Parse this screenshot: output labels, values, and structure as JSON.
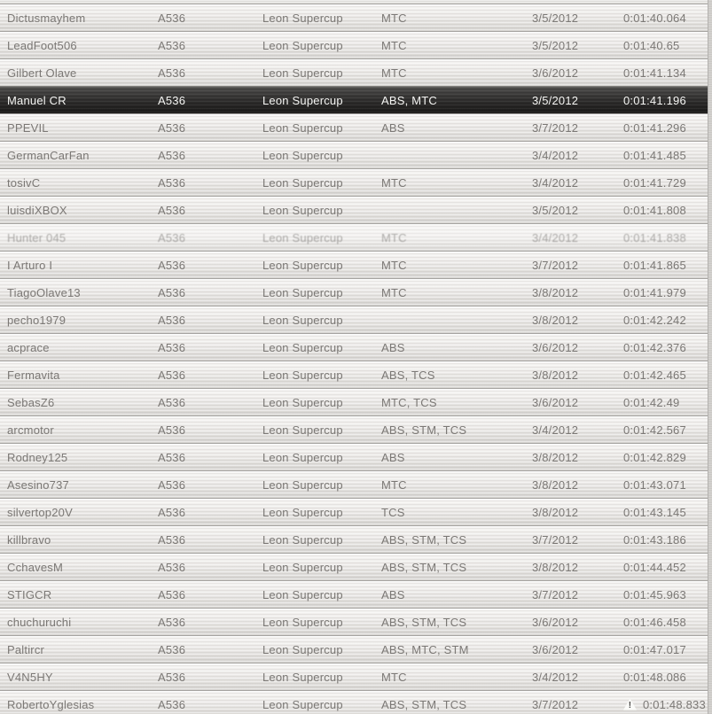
{
  "icons": {
    "warning_glyph": "!"
  },
  "colors": {
    "row_text": "#7b7875",
    "selected_row_top": "#5a5957",
    "selected_row_bottom": "#1b1a19",
    "selected_text": "#f5f5f3",
    "separator": "#a6a4a1"
  },
  "table": {
    "columns": [
      "player",
      "car_class",
      "series",
      "aids",
      "date",
      "time"
    ],
    "rows": [
      {
        "player": "Dictusmayhem",
        "car_class": "A536",
        "series": "Leon Supercup",
        "aids": "MTC",
        "date": "3/5/2012",
        "time": "0:01:40.064"
      },
      {
        "player": "LeadFoot506",
        "car_class": "A536",
        "series": "Leon Supercup",
        "aids": "MTC",
        "date": "3/5/2012",
        "time": "0:01:40.65"
      },
      {
        "player": "Gilbert Olave",
        "car_class": "A536",
        "series": "Leon Supercup",
        "aids": "MTC",
        "date": "3/6/2012",
        "time": "0:01:41.134"
      },
      {
        "player": "Manuel CR",
        "car_class": "A536",
        "series": "Leon Supercup",
        "aids": "ABS, MTC",
        "date": "3/5/2012",
        "time": "0:01:41.196",
        "selected": true
      },
      {
        "player": "PPEVIL",
        "car_class": "A536",
        "series": "Leon Supercup",
        "aids": "ABS",
        "date": "3/7/2012",
        "time": "0:01:41.296"
      },
      {
        "player": "GermanCarFan",
        "car_class": "A536",
        "series": "Leon Supercup",
        "aids": "",
        "date": "3/4/2012",
        "time": "0:01:41.485"
      },
      {
        "player": "tosivC",
        "car_class": "A536",
        "series": "Leon Supercup",
        "aids": "MTC",
        "date": "3/4/2012",
        "time": "0:01:41.729"
      },
      {
        "player": "luisdiXBOX",
        "car_class": "A536",
        "series": "Leon Supercup",
        "aids": "",
        "date": "3/5/2012",
        "time": "0:01:41.808"
      },
      {
        "player": "Hunter 045",
        "car_class": "A536",
        "series": "Leon Supercup",
        "aids": "MTC",
        "date": "3/4/2012",
        "time": "0:01:41.838",
        "glow": true
      },
      {
        "player": "I Arturo I",
        "car_class": "A536",
        "series": "Leon Supercup",
        "aids": "MTC",
        "date": "3/7/2012",
        "time": "0:01:41.865"
      },
      {
        "player": "TiagoOlave13",
        "car_class": "A536",
        "series": "Leon Supercup",
        "aids": "MTC",
        "date": "3/8/2012",
        "time": "0:01:41.979"
      },
      {
        "player": "pecho1979",
        "car_class": "A536",
        "series": "Leon Supercup",
        "aids": "",
        "date": "3/8/2012",
        "time": "0:01:42.242"
      },
      {
        "player": "acprace",
        "car_class": "A536",
        "series": "Leon Supercup",
        "aids": "ABS",
        "date": "3/6/2012",
        "time": "0:01:42.376"
      },
      {
        "player": "Fermavita",
        "car_class": "A536",
        "series": "Leon Supercup",
        "aids": "ABS, TCS",
        "date": "3/8/2012",
        "time": "0:01:42.465"
      },
      {
        "player": "SebasZ6",
        "car_class": "A536",
        "series": "Leon Supercup",
        "aids": "MTC, TCS",
        "date": "3/6/2012",
        "time": "0:01:42.49"
      },
      {
        "player": "arcmotor",
        "car_class": "A536",
        "series": "Leon Supercup",
        "aids": "ABS, STM, TCS",
        "date": "3/4/2012",
        "time": "0:01:42.567"
      },
      {
        "player": "Rodney125",
        "car_class": "A536",
        "series": "Leon Supercup",
        "aids": "ABS",
        "date": "3/8/2012",
        "time": "0:01:42.829"
      },
      {
        "player": "Asesino737",
        "car_class": "A536",
        "series": "Leon Supercup",
        "aids": "MTC",
        "date": "3/8/2012",
        "time": "0:01:43.071"
      },
      {
        "player": "silvertop20V",
        "car_class": "A536",
        "series": "Leon Supercup",
        "aids": "TCS",
        "date": "3/8/2012",
        "time": "0:01:43.145"
      },
      {
        "player": "killbravo",
        "car_class": "A536",
        "series": "Leon Supercup",
        "aids": "ABS, STM, TCS",
        "date": "3/7/2012",
        "time": "0:01:43.186"
      },
      {
        "player": "CchavesM",
        "car_class": "A536",
        "series": "Leon Supercup",
        "aids": "ABS, STM, TCS",
        "date": "3/8/2012",
        "time": "0:01:44.452"
      },
      {
        "player": "STIGCR",
        "car_class": "A536",
        "series": "Leon Supercup",
        "aids": "ABS",
        "date": "3/7/2012",
        "time": "0:01:45.963"
      },
      {
        "player": "chuchuruchi",
        "car_class": "A536",
        "series": "Leon Supercup",
        "aids": "ABS, STM, TCS",
        "date": "3/6/2012",
        "time": "0:01:46.458"
      },
      {
        "player": "Paltircr",
        "car_class": "A536",
        "series": "Leon Supercup",
        "aids": "ABS, MTC, STM",
        "date": "3/6/2012",
        "time": "0:01:47.017"
      },
      {
        "player": "V4N5HY",
        "car_class": "A536",
        "series": "Leon Supercup",
        "aids": "MTC",
        "date": "3/4/2012",
        "time": "0:01:48.086"
      },
      {
        "player": "RobertoYglesias",
        "car_class": "A536",
        "series": "Leon Supercup",
        "aids": "ABS, STM, TCS",
        "date": "3/7/2012",
        "time": "0:01:48.833",
        "warning": true
      }
    ]
  }
}
